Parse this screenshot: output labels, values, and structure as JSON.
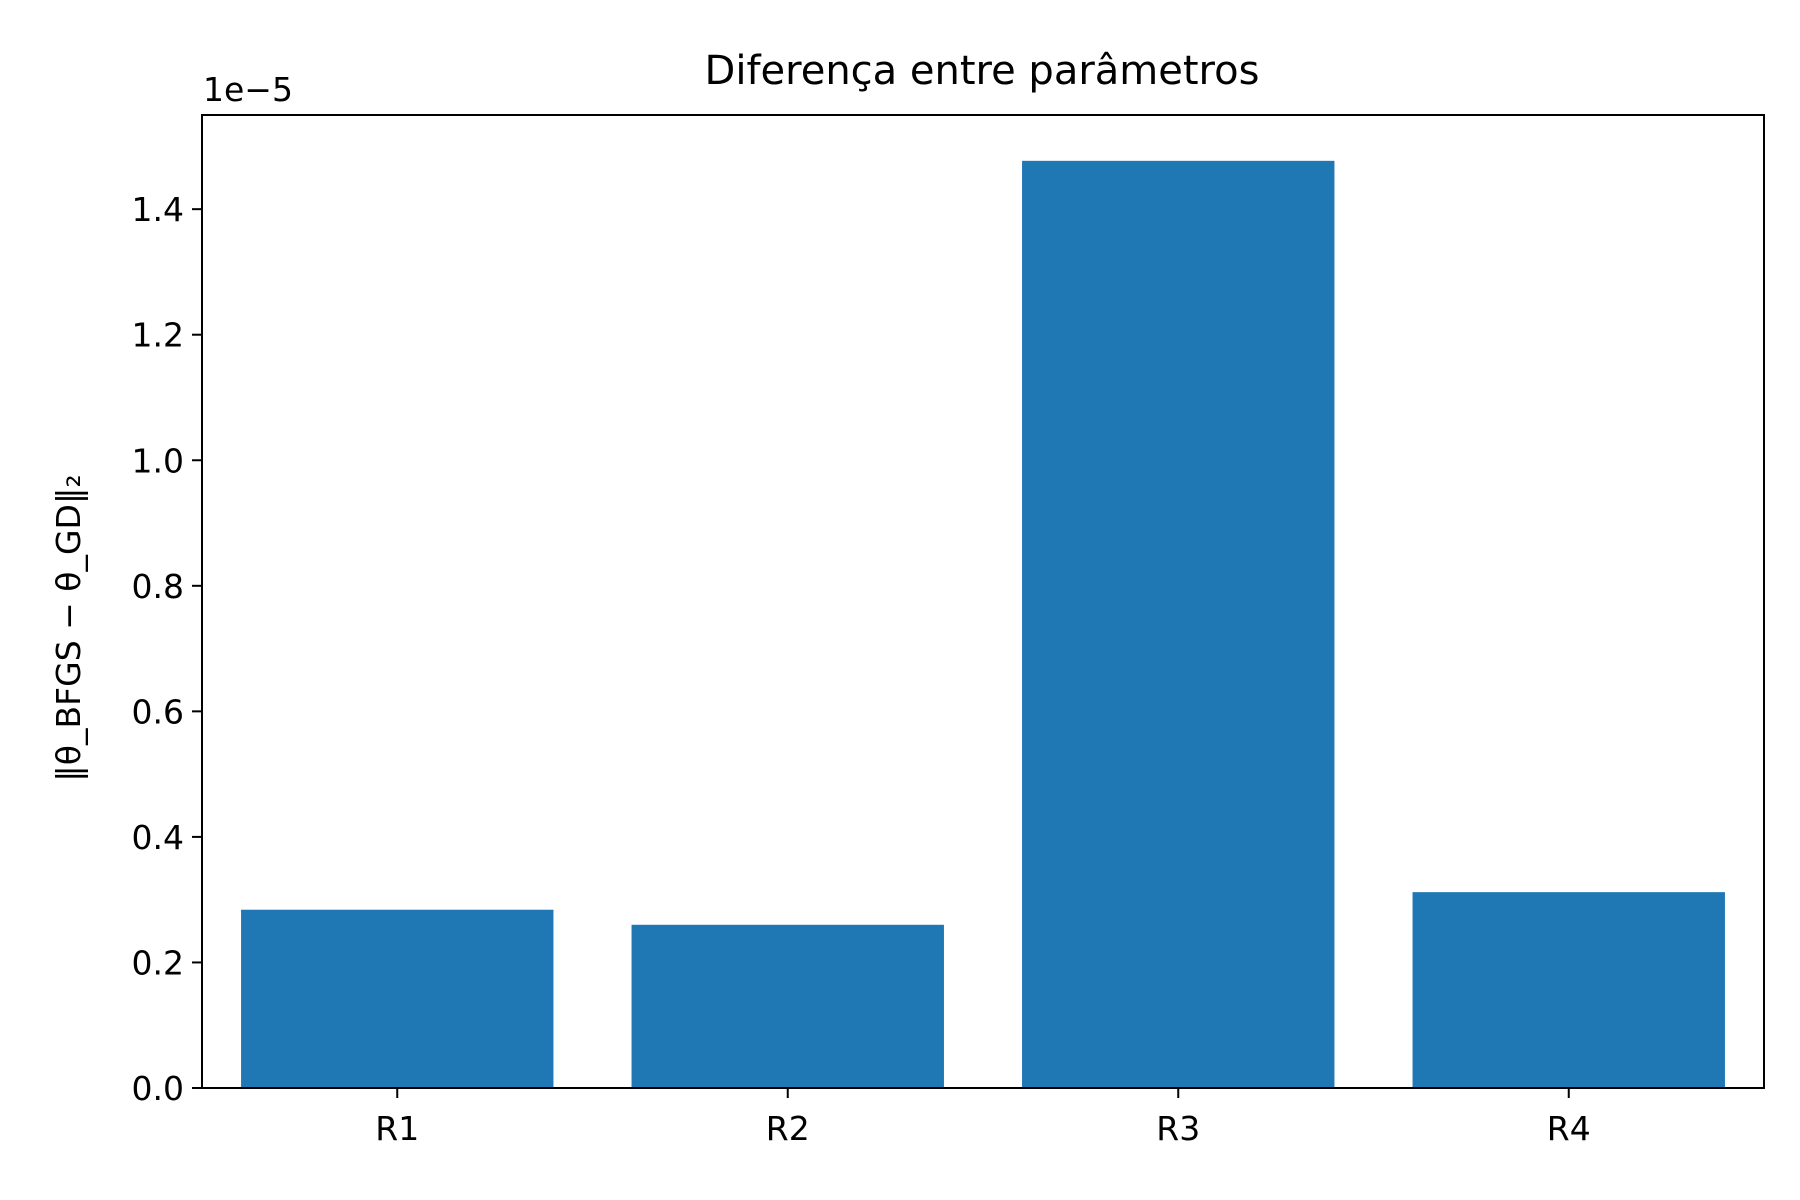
{
  "chart_data": {
    "type": "bar",
    "title": "Diferença entre parâmetros",
    "xlabel": "",
    "ylabel": "‖θ_BFGS − θ_GD‖₂",
    "y_offset_label": "1e−5",
    "categories": [
      "R1",
      "R2",
      "R3",
      "R4"
    ],
    "values": [
      0.284,
      0.26,
      1.477,
      0.312
    ],
    "ylim": [
      0,
      1.55
    ],
    "yticks": [
      0.0,
      0.2,
      0.4,
      0.6,
      0.8,
      1.0,
      1.2,
      1.4
    ],
    "ytick_labels": [
      "0.0",
      "0.2",
      "0.4",
      "0.6",
      "0.8",
      "1.0",
      "1.2",
      "1.4"
    ],
    "grid": false,
    "bar_color": "#1f77b4"
  }
}
